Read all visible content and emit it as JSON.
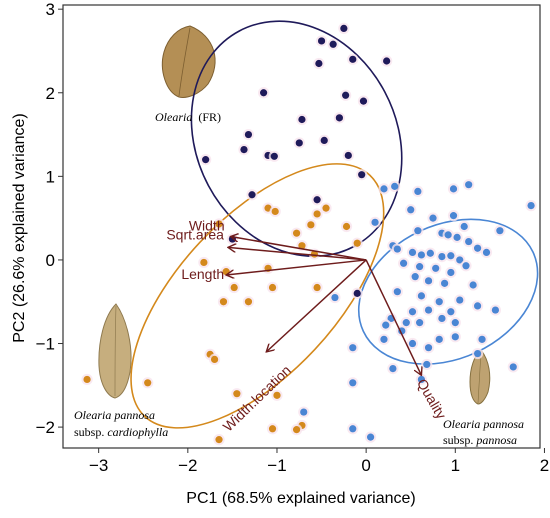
{
  "chart_data": {
    "type": "scatter",
    "title": "",
    "xlabel": "PC1 (68.5% explained variance)",
    "ylabel": "PC2 (26.6% explained variance)",
    "xlim": [
      -3.4,
      1.95
    ],
    "ylim": [
      -2.25,
      3.05
    ],
    "xticks": [
      -3,
      -2,
      -1,
      0,
      1,
      2
    ],
    "yticks": [
      -2,
      -1,
      0,
      1,
      2,
      3
    ],
    "xtick_labels": [
      "−3",
      "−2",
      "−1",
      "0",
      "1",
      "2"
    ],
    "ytick_labels": [
      "−2",
      "−1",
      "0",
      "1",
      "2",
      "3"
    ],
    "grid": false,
    "series": [
      {
        "label_line1": "Olearia",
        "label_line2": "(FR)",
        "color": "#1f1a5a",
        "points": [
          [
            -0.25,
            2.77
          ],
          [
            -0.5,
            2.62
          ],
          [
            -0.53,
            2.35
          ],
          [
            -0.37,
            2.58
          ],
          [
            -0.15,
            2.4
          ],
          [
            0.23,
            2.38
          ],
          [
            -1.15,
            2.0
          ],
          [
            -0.03,
            1.9
          ],
          [
            -0.23,
            1.97
          ],
          [
            -0.72,
            1.68
          ],
          [
            -0.75,
            1.4
          ],
          [
            -1.32,
            1.5
          ],
          [
            -1.1,
            1.25
          ],
          [
            -0.3,
            1.7
          ],
          [
            -0.47,
            1.43
          ],
          [
            -1.8,
            1.2
          ],
          [
            -1.03,
            1.24
          ],
          [
            -1.37,
            1.32
          ],
          [
            -0.2,
            1.25
          ],
          [
            -0.05,
            1.02
          ],
          [
            -1.28,
            0.78
          ],
          [
            -1.5,
            0.25
          ],
          [
            -0.55,
            0.72
          ],
          [
            -0.1,
            -0.4
          ]
        ]
      },
      {
        "label_line1": "Olearia pannosa",
        "label_line2": "subsp. cardiophylla",
        "color": "#d4891c",
        "points": [
          [
            -1.1,
            0.62
          ],
          [
            -0.45,
            0.62
          ],
          [
            -0.55,
            0.55
          ],
          [
            -1.02,
            0.58
          ],
          [
            -1.65,
            0.43
          ],
          [
            -0.78,
            0.32
          ],
          [
            -0.62,
            0.42
          ],
          [
            -0.22,
            0.4
          ],
          [
            -0.1,
            0.2
          ],
          [
            -0.58,
            0.07
          ],
          [
            -0.72,
            0.17
          ],
          [
            -1.57,
            -0.14
          ],
          [
            -1.48,
            -0.33
          ],
          [
            -1.82,
            -0.03
          ],
          [
            -1.05,
            -0.33
          ],
          [
            -0.55,
            -0.33
          ],
          [
            -1.32,
            -0.5
          ],
          [
            -1.6,
            -0.5
          ],
          [
            -1.75,
            -1.13
          ],
          [
            -1.7,
            -1.19
          ],
          [
            -3.13,
            -1.43
          ],
          [
            -2.45,
            -1.47
          ],
          [
            -1.45,
            -1.6
          ],
          [
            -1.0,
            -1.62
          ],
          [
            -1.05,
            -2.02
          ],
          [
            -0.72,
            -1.98
          ],
          [
            -0.78,
            -2.03
          ],
          [
            -1.65,
            -2.15
          ],
          [
            -1.1,
            -0.1
          ]
        ]
      },
      {
        "label_line1": "Olearia pannosa",
        "label_line2": "subsp. pannosa",
        "color": "#4a86d4",
        "points": [
          [
            0.2,
            0.85
          ],
          [
            1.15,
            0.9
          ],
          [
            0.98,
            0.85
          ],
          [
            1.85,
            0.65
          ],
          [
            0.5,
            0.6
          ],
          [
            0.75,
            0.5
          ],
          [
            0.98,
            0.53
          ],
          [
            1.1,
            0.4
          ],
          [
            0.58,
            0.35
          ],
          [
            0.85,
            0.32
          ],
          [
            0.92,
            0.3
          ],
          [
            1.02,
            0.27
          ],
          [
            1.15,
            0.22
          ],
          [
            1.25,
            0.14
          ],
          [
            1.35,
            0.09
          ],
          [
            0.3,
            0.17
          ],
          [
            0.35,
            0.13
          ],
          [
            0.52,
            0.09
          ],
          [
            0.62,
            0.06
          ],
          [
            0.72,
            0.08
          ],
          [
            0.85,
            0.04
          ],
          [
            0.95,
            0.05
          ],
          [
            1.05,
            0.0
          ],
          [
            0.42,
            -0.04
          ],
          [
            0.6,
            -0.08
          ],
          [
            0.78,
            -0.1
          ],
          [
            0.95,
            -0.15
          ],
          [
            1.12,
            -0.07
          ],
          [
            0.55,
            -0.2
          ],
          [
            0.7,
            -0.25
          ],
          [
            0.88,
            -0.28
          ],
          [
            1.2,
            -0.3
          ],
          [
            0.35,
            -0.38
          ],
          [
            0.62,
            -0.43
          ],
          [
            0.82,
            -0.5
          ],
          [
            1.05,
            -0.48
          ],
          [
            1.25,
            -0.55
          ],
          [
            1.45,
            -0.6
          ],
          [
            0.52,
            -0.62
          ],
          [
            0.7,
            -0.6
          ],
          [
            0.95,
            -0.62
          ],
          [
            0.28,
            -0.7
          ],
          [
            0.45,
            -0.75
          ],
          [
            0.6,
            -0.75
          ],
          [
            0.85,
            -0.7
          ],
          [
            1.0,
            -0.75
          ],
          [
            0.22,
            -0.78
          ],
          [
            0.4,
            -0.85
          ],
          [
            0.2,
            -0.95
          ],
          [
            0.82,
            -0.95
          ],
          [
            1.0,
            -0.92
          ],
          [
            1.3,
            -0.95
          ],
          [
            0.52,
            -1.0
          ],
          [
            0.7,
            -1.05
          ],
          [
            1.25,
            -1.12
          ],
          [
            -0.15,
            -1.05
          ],
          [
            1.65,
            -1.28
          ],
          [
            0.3,
            -1.3
          ],
          [
            0.68,
            -1.25
          ],
          [
            -0.15,
            -1.47
          ],
          [
            0.62,
            -1.43
          ],
          [
            -0.35,
            -0.45
          ],
          [
            0.1,
            0.45
          ],
          [
            1.5,
            0.35
          ],
          [
            -0.7,
            -1.82
          ],
          [
            -0.15,
            -2.02
          ],
          [
            0.05,
            -2.12
          ],
          [
            0.32,
            0.88
          ],
          [
            0.58,
            0.82
          ]
        ]
      }
    ],
    "ellipses": [
      {
        "series": 0,
        "cx": -0.78,
        "cy": 1.45,
        "rx": 1.12,
        "ry": 1.46,
        "angle_deg": 28
      },
      {
        "series": 1,
        "cx": -1.22,
        "cy": -0.43,
        "rx": 1.85,
        "ry": 0.94,
        "angle_deg": 47
      },
      {
        "series": 2,
        "cx": 0.92,
        "cy": -0.38,
        "rx": 1.05,
        "ry": 0.8,
        "angle_deg": 25
      }
    ],
    "loadings": [
      {
        "label": "Width",
        "x": -1.52,
        "y": 0.28
      },
      {
        "label": "Sqrt.area",
        "x": -1.55,
        "y": 0.15
      },
      {
        "label": "Length",
        "x": -1.57,
        "y": -0.18
      },
      {
        "label": "Width.location",
        "x": -1.12,
        "y": -1.1
      },
      {
        "label": "Quality",
        "x": 0.62,
        "y": -1.38
      }
    ],
    "loading_color": "#6e1c1c"
  }
}
